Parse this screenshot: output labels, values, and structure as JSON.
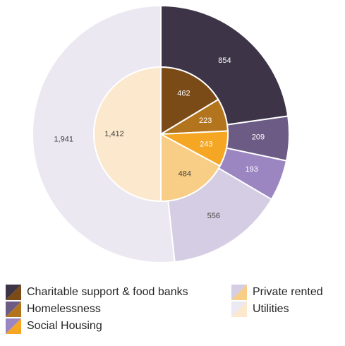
{
  "chart_data": {
    "type": "pie",
    "variant": "nested-donut",
    "title": "",
    "series": [
      {
        "ring": "outer",
        "categories": [
          "Charitable support & food banks",
          "Homelessness",
          "Social Housing",
          "Private rented",
          "Utilities"
        ],
        "values": [
          854,
          209,
          193,
          556,
          1941
        ],
        "labels": [
          "854",
          "209",
          "193",
          "556",
          "1,941"
        ],
        "colors": [
          "#3d3547",
          "#6c5b85",
          "#9b86c2",
          "#d5cde3",
          "#ebe8f1"
        ]
      },
      {
        "ring": "inner",
        "categories": [
          "Charitable support & food banks",
          "Homelessness",
          "Social Housing",
          "Private rented",
          "Utilities"
        ],
        "values": [
          462,
          223,
          243,
          484,
          1412
        ],
        "labels": [
          "462",
          "223",
          "243",
          "484",
          "1,412"
        ],
        "colors": [
          "#7a4a17",
          "#b3741e",
          "#f5a623",
          "#f8cd85",
          "#fce8cc"
        ]
      }
    ],
    "label_colors": {
      "outer": [
        "#ffffff",
        "#ffffff",
        "#ffffff",
        "#404040",
        "#404040"
      ],
      "inner": [
        "#ffffff",
        "#ffffff",
        "#ffffff",
        "#404040",
        "#404040"
      ]
    },
    "legend": {
      "position": "bottom",
      "entries": [
        {
          "label": "Charitable support & food banks",
          "outer_color": "#3d3547",
          "inner_color": "#7a4a17"
        },
        {
          "label": "Homelessness",
          "outer_color": "#6c5b85",
          "inner_color": "#b3741e"
        },
        {
          "label": "Social Housing",
          "outer_color": "#9b86c2",
          "inner_color": "#f5a623"
        },
        {
          "label": "Private rented",
          "outer_color": "#d5cde3",
          "inner_color": "#f8cd85"
        },
        {
          "label": "Utilities",
          "outer_color": "#ebe8f1",
          "inner_color": "#fce8cc"
        }
      ]
    }
  }
}
